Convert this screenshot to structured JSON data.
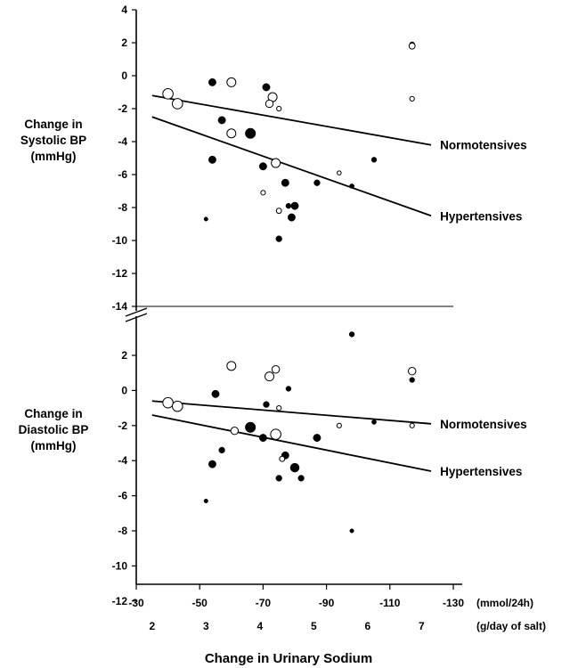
{
  "chart_data": [
    {
      "type": "scatter",
      "ylabel": [
        "Change in",
        "Systolic BP",
        "(mmHg)"
      ],
      "ylim": [
        -14,
        4
      ],
      "yticks": [
        4,
        2,
        0,
        -2,
        -4,
        -6,
        -8,
        -10,
        -12,
        -14
      ],
      "ytick_labels": [
        "4",
        "2",
        "0",
        "-2",
        "-4",
        "-6",
        "-8",
        "-10",
        "-12",
        "-14"
      ],
      "xlim": [
        -30,
        -130
      ],
      "lines": [
        {
          "name": "Normotensives",
          "x": [
            -35,
            -123
          ],
          "y": [
            -1.2,
            -4.2
          ]
        },
        {
          "name": "Hypertensives",
          "x": [
            -35,
            -123
          ],
          "y": [
            -2.5,
            -8.5
          ]
        }
      ],
      "points": [
        {
          "x": -40,
          "y": -1.1,
          "size": 3,
          "filled": false
        },
        {
          "x": -43,
          "y": -1.7,
          "size": 3,
          "filled": false
        },
        {
          "x": -54,
          "y": -0.4,
          "size": 2,
          "filled": true
        },
        {
          "x": -60,
          "y": -0.4,
          "size": 2.5,
          "filled": false
        },
        {
          "x": -57,
          "y": -2.7,
          "size": 2,
          "filled": true
        },
        {
          "x": -60,
          "y": -3.5,
          "size": 2.5,
          "filled": false
        },
        {
          "x": -66,
          "y": -3.5,
          "size": 3,
          "filled": true
        },
        {
          "x": -54,
          "y": -5.1,
          "size": 2,
          "filled": true
        },
        {
          "x": -52,
          "y": -8.7,
          "size": 0.8,
          "filled": true
        },
        {
          "x": -71,
          "y": -0.7,
          "size": 2,
          "filled": true
        },
        {
          "x": -73,
          "y": -1.3,
          "size": 2.5,
          "filled": false
        },
        {
          "x": -72,
          "y": -1.7,
          "size": 2,
          "filled": false
        },
        {
          "x": -75,
          "y": -2.0,
          "size": 1,
          "filled": false
        },
        {
          "x": -70,
          "y": -5.5,
          "size": 2,
          "filled": true
        },
        {
          "x": -74,
          "y": -5.3,
          "size": 2.5,
          "filled": false
        },
        {
          "x": -70,
          "y": -7.1,
          "size": 1,
          "filled": false
        },
        {
          "x": -77,
          "y": -6.5,
          "size": 2,
          "filled": true
        },
        {
          "x": -75,
          "y": -8.2,
          "size": 1.2,
          "filled": false
        },
        {
          "x": -78,
          "y": -7.9,
          "size": 1.2,
          "filled": true
        },
        {
          "x": -80,
          "y": -7.9,
          "size": 2,
          "filled": true
        },
        {
          "x": -79,
          "y": -8.6,
          "size": 2,
          "filled": true
        },
        {
          "x": -75,
          "y": -9.9,
          "size": 1.5,
          "filled": true
        },
        {
          "x": -87,
          "y": -6.5,
          "size": 1.5,
          "filled": true
        },
        {
          "x": -94,
          "y": -5.9,
          "size": 0.8,
          "filled": false
        },
        {
          "x": -98,
          "y": -6.7,
          "size": 1,
          "filled": true
        },
        {
          "x": -105,
          "y": -5.1,
          "size": 1.2,
          "filled": true
        },
        {
          "x": -117,
          "y": 1.9,
          "size": 1.2,
          "filled": true
        },
        {
          "x": -117,
          "y": 1.8,
          "size": 1.5,
          "filled": false
        },
        {
          "x": -117,
          "y": -1.4,
          "size": 1,
          "filled": false
        }
      ]
    },
    {
      "type": "scatter",
      "ylabel": [
        "Change in",
        "Diastolic BP",
        "(mmHg)"
      ],
      "ylim": [
        -12,
        4
      ],
      "yticks": [
        2,
        0,
        -2,
        -4,
        -6,
        -8,
        -10,
        -12
      ],
      "ytick_labels": [
        "2",
        "0",
        "-2",
        "-4",
        "-6",
        "-8",
        "-10",
        "-12"
      ],
      "xlim": [
        -30,
        -130
      ],
      "xticks": [
        -30,
        -50,
        -70,
        -90,
        -110,
        -130
      ],
      "xtick_labels": [
        "-30",
        "-50",
        "-70",
        "-90",
        "-110",
        "-130"
      ],
      "x_unit": "(mmol/24h)",
      "salt_ticks": [
        {
          "label": "2",
          "x": -35
        },
        {
          "label": "3",
          "x": -52
        },
        {
          "label": "4",
          "x": -69
        },
        {
          "label": "5",
          "x": -86
        },
        {
          "label": "6",
          "x": -103
        },
        {
          "label": "7",
          "x": -120
        }
      ],
      "salt_unit": "(g/day of salt)",
      "xlabel": "Change in Urinary Sodium",
      "lines": [
        {
          "name": "Normotensives",
          "x": [
            -35,
            -123
          ],
          "y": [
            -0.6,
            -1.9
          ]
        },
        {
          "name": "Hypertensives",
          "x": [
            -35,
            -123
          ],
          "y": [
            -1.4,
            -4.6
          ]
        }
      ],
      "points": [
        {
          "x": -40,
          "y": -0.7,
          "size": 3,
          "filled": false
        },
        {
          "x": -43,
          "y": -0.9,
          "size": 3,
          "filled": false
        },
        {
          "x": -55,
          "y": -0.2,
          "size": 2,
          "filled": true
        },
        {
          "x": -60,
          "y": 1.4,
          "size": 2.5,
          "filled": false
        },
        {
          "x": -57,
          "y": -3.4,
          "size": 1.5,
          "filled": true
        },
        {
          "x": -54,
          "y": -4.2,
          "size": 2,
          "filled": true
        },
        {
          "x": -52,
          "y": -6.3,
          "size": 0.8,
          "filled": true
        },
        {
          "x": -61,
          "y": -2.3,
          "size": 2,
          "filled": false
        },
        {
          "x": -66,
          "y": -2.1,
          "size": 3,
          "filled": true
        },
        {
          "x": -70,
          "y": -2.7,
          "size": 2,
          "filled": true
        },
        {
          "x": -74,
          "y": 1.2,
          "size": 2,
          "filled": false
        },
        {
          "x": -72,
          "y": 0.8,
          "size": 2.5,
          "filled": false
        },
        {
          "x": -71,
          "y": -0.8,
          "size": 1.5,
          "filled": true
        },
        {
          "x": -75,
          "y": -1.0,
          "size": 1,
          "filled": false
        },
        {
          "x": -74,
          "y": -2.5,
          "size": 3,
          "filled": false
        },
        {
          "x": -78,
          "y": 0.1,
          "size": 1.2,
          "filled": true
        },
        {
          "x": -77,
          "y": -3.7,
          "size": 2,
          "filled": true
        },
        {
          "x": -76,
          "y": -3.9,
          "size": 1.2,
          "filled": false
        },
        {
          "x": -80,
          "y": -4.4,
          "size": 2.5,
          "filled": true
        },
        {
          "x": -75,
          "y": -5.0,
          "size": 1.5,
          "filled": true
        },
        {
          "x": -82,
          "y": -5.0,
          "size": 1.5,
          "filled": true
        },
        {
          "x": -87,
          "y": -2.7,
          "size": 2,
          "filled": true
        },
        {
          "x": -94,
          "y": -2.0,
          "size": 1,
          "filled": false
        },
        {
          "x": -98,
          "y": 3.2,
          "size": 1.2,
          "filled": true
        },
        {
          "x": -98,
          "y": -8.0,
          "size": 0.8,
          "filled": true
        },
        {
          "x": -105,
          "y": -1.8,
          "size": 1,
          "filled": true
        },
        {
          "x": -117,
          "y": 1.1,
          "size": 2,
          "filled": false
        },
        {
          "x": -117,
          "y": 0.6,
          "size": 1.2,
          "filled": true
        },
        {
          "x": -117,
          "y": -2.0,
          "size": 1,
          "filled": false
        }
      ]
    }
  ]
}
